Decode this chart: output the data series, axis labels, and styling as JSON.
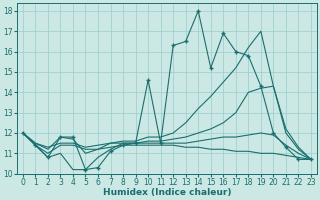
{
  "xlabel": "Humidex (Indice chaleur)",
  "bg_color": "#cce8e4",
  "grid_color": "#99cccc",
  "line_color": "#1a6e6e",
  "xlim": [
    -0.5,
    23.5
  ],
  "ylim": [
    10,
    18.4
  ],
  "xticks": [
    0,
    1,
    2,
    3,
    4,
    5,
    6,
    7,
    8,
    9,
    10,
    11,
    12,
    13,
    14,
    15,
    16,
    17,
    18,
    19,
    20,
    21,
    22,
    23
  ],
  "yticks": [
    10,
    11,
    12,
    13,
    14,
    15,
    16,
    17,
    18
  ],
  "lines": [
    {
      "x": [
        0,
        1,
        2,
        3,
        4,
        5,
        6,
        7,
        8,
        9,
        10,
        11,
        12,
        13,
        14,
        15,
        16,
        17,
        18,
        19,
        20,
        21,
        22,
        23
      ],
      "y": [
        12.0,
        11.4,
        10.8,
        11.8,
        11.8,
        10.2,
        10.3,
        11.1,
        11.4,
        11.5,
        14.6,
        11.5,
        16.3,
        16.5,
        18.0,
        15.2,
        16.9,
        16.0,
        15.8,
        14.3,
        12.0,
        11.3,
        10.7,
        10.7
      ],
      "marker": "+"
    },
    {
      "x": [
        0,
        1,
        2,
        3,
        4,
        5,
        6,
        7,
        8,
        9,
        10,
        11,
        12,
        13,
        14,
        15,
        16,
        17,
        18,
        19,
        20,
        21,
        22,
        23
      ],
      "y": [
        12.0,
        11.4,
        10.8,
        11.0,
        10.2,
        10.2,
        10.8,
        11.2,
        11.5,
        11.5,
        11.5,
        11.5,
        11.5,
        11.5,
        11.6,
        11.7,
        11.8,
        11.8,
        11.9,
        12.0,
        11.9,
        11.4,
        11.0,
        10.7
      ],
      "marker": null
    },
    {
      "x": [
        0,
        1,
        2,
        3,
        4,
        5,
        6,
        7,
        8,
        9,
        10,
        11,
        12,
        13,
        14,
        15,
        16,
        17,
        18,
        19,
        20,
        21,
        22,
        23
      ],
      "y": [
        12.0,
        11.5,
        11.3,
        11.5,
        11.5,
        11.3,
        11.4,
        11.5,
        11.5,
        11.5,
        11.6,
        11.6,
        11.7,
        11.8,
        12.0,
        12.2,
        12.5,
        13.0,
        14.0,
        14.2,
        14.3,
        12.0,
        11.2,
        10.7
      ],
      "marker": null
    },
    {
      "x": [
        0,
        1,
        2,
        3,
        4,
        5,
        6,
        7,
        8,
        9,
        10,
        11,
        12,
        13,
        14,
        15,
        16,
        17,
        18,
        19,
        20,
        21,
        22,
        23
      ],
      "y": [
        12.0,
        11.5,
        11.2,
        11.8,
        11.7,
        11.0,
        11.2,
        11.5,
        11.6,
        11.6,
        11.8,
        11.8,
        12.0,
        12.5,
        13.2,
        13.8,
        14.5,
        15.2,
        16.2,
        17.0,
        14.3,
        12.2,
        11.3,
        10.7
      ],
      "marker": null
    },
    {
      "x": [
        0,
        1,
        2,
        3,
        4,
        5,
        6,
        7,
        8,
        9,
        10,
        11,
        12,
        13,
        14,
        15,
        16,
        17,
        18,
        19,
        20,
        21,
        22,
        23
      ],
      "y": [
        12.0,
        11.4,
        11.0,
        11.4,
        11.4,
        11.2,
        11.2,
        11.3,
        11.4,
        11.4,
        11.4,
        11.4,
        11.4,
        11.3,
        11.3,
        11.2,
        11.2,
        11.1,
        11.1,
        11.0,
        11.0,
        10.9,
        10.8,
        10.7
      ],
      "marker": null
    }
  ]
}
